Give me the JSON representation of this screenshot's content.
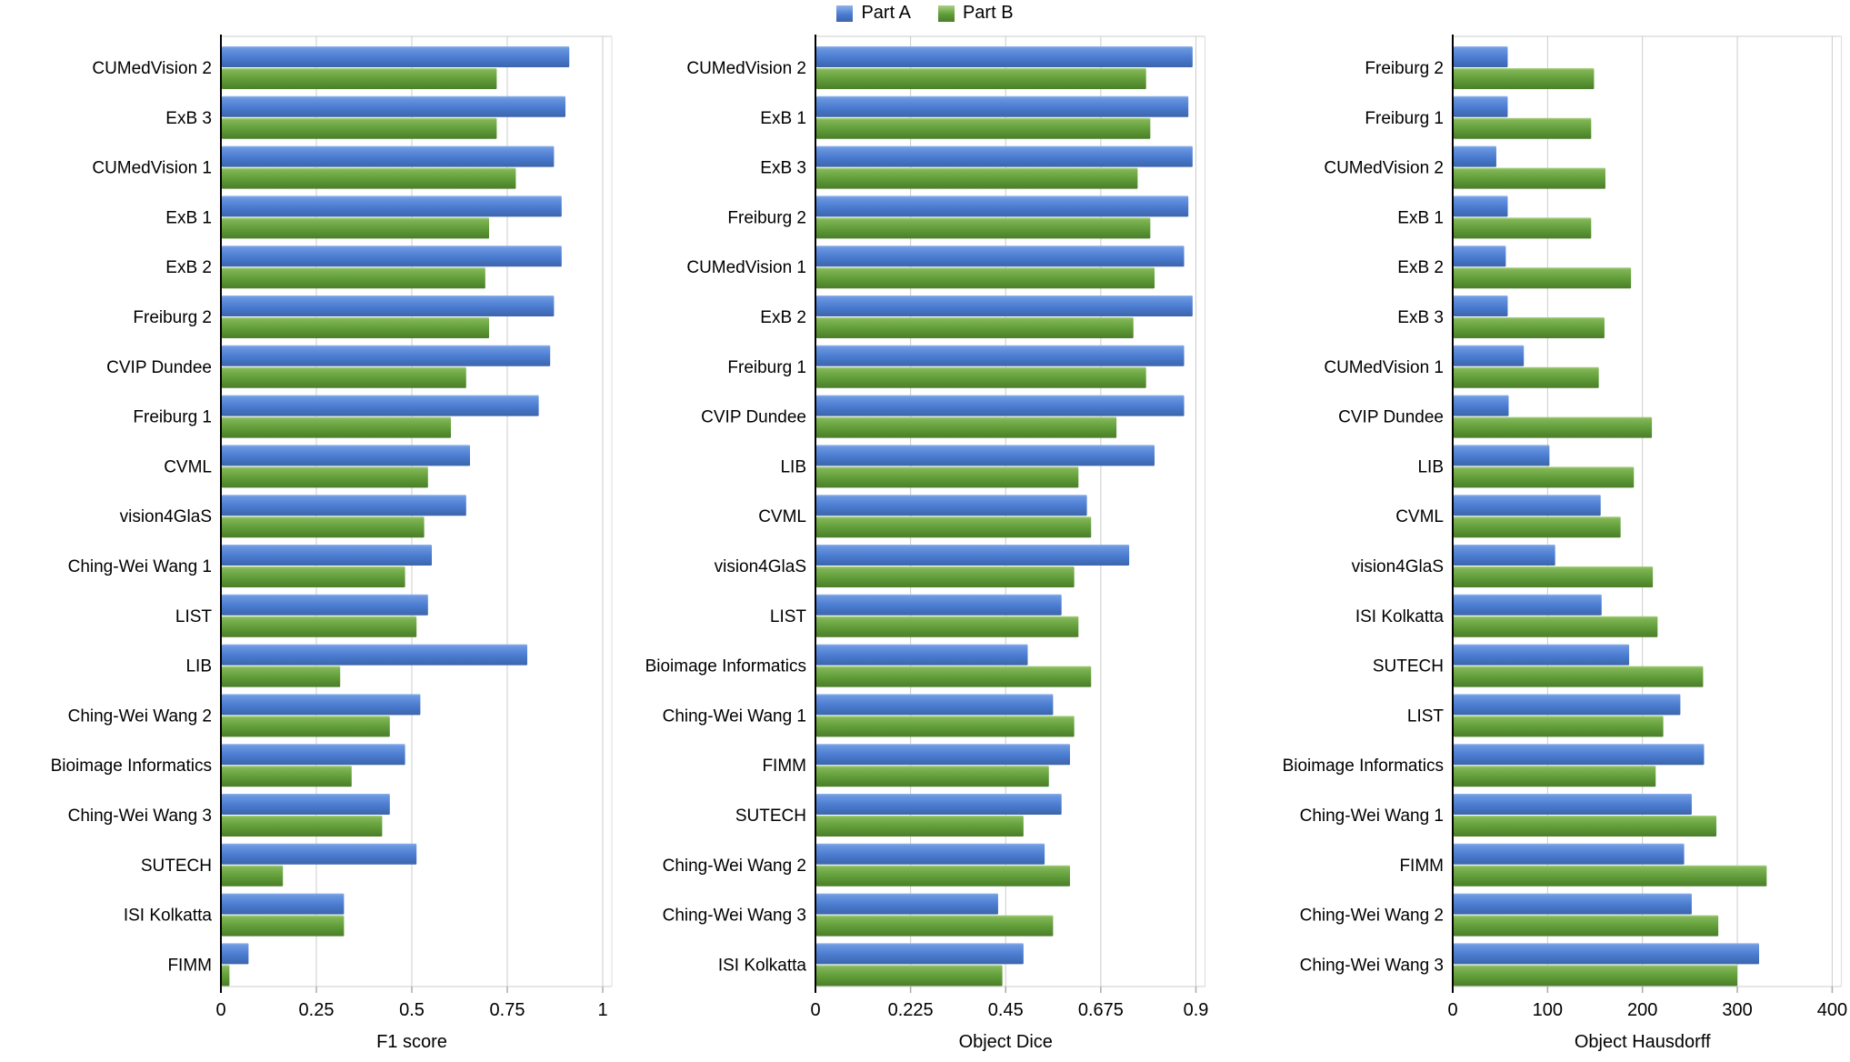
{
  "legend": {
    "items": [
      {
        "label": "Part A",
        "color": "#4a7bd0"
      },
      {
        "label": "Part B",
        "color": "#5f9c38"
      }
    ]
  },
  "colors": {
    "part_a": "#4a7bd0",
    "part_b": "#5f9c38",
    "grid": "#cccccc",
    "axis": "#000000",
    "tick": "#aaaaaa"
  },
  "chart_data": [
    {
      "type": "bar",
      "orientation": "horizontal",
      "xlabel": "F1 score",
      "xlim": [
        0,
        1
      ],
      "xticks": [
        "0",
        "0.25",
        "0.5",
        "0.75",
        "1"
      ],
      "xtick_values": [
        0,
        0.25,
        0.5,
        0.75,
        1
      ],
      "grid": true,
      "legend_position": "top",
      "categories": [
        "CUMedVision 2",
        "ExB 3",
        "CUMedVision 1",
        "ExB 1",
        "ExB 2",
        "Freiburg 2",
        "CVIP Dundee",
        "Freiburg 1",
        "CVML",
        "vision4GlaS",
        "Ching-Wei Wang 1",
        "LIST",
        "LIB",
        "Ching-Wei Wang 2",
        "Bioimage Informatics",
        "Ching-Wei Wang 3",
        "SUTECH",
        "ISI Kolkatta",
        "FIMM"
      ],
      "series": [
        {
          "name": "Part A",
          "values": [
            0.91,
            0.9,
            0.87,
            0.89,
            0.89,
            0.87,
            0.86,
            0.83,
            0.65,
            0.64,
            0.55,
            0.54,
            0.8,
            0.52,
            0.48,
            0.44,
            0.51,
            0.32,
            0.07
          ]
        },
        {
          "name": "Part B",
          "values": [
            0.72,
            0.72,
            0.77,
            0.7,
            0.69,
            0.7,
            0.64,
            0.6,
            0.54,
            0.53,
            0.48,
            0.51,
            0.31,
            0.44,
            0.34,
            0.42,
            0.16,
            0.32,
            0.02
          ]
        }
      ]
    },
    {
      "type": "bar",
      "orientation": "horizontal",
      "xlabel": "Object Dice",
      "xlim": [
        0,
        0.9
      ],
      "xticks": [
        "0",
        "0.225",
        "0.45",
        "0.675",
        "0.9"
      ],
      "xtick_values": [
        0,
        0.225,
        0.45,
        0.675,
        0.9
      ],
      "grid": true,
      "legend_position": "top",
      "categories": [
        "CUMedVision 2",
        "ExB 1",
        "ExB 3",
        "Freiburg 2",
        "CUMedVision 1",
        "ExB 2",
        "Freiburg 1",
        "CVIP Dundee",
        "LIB",
        "CVML",
        "vision4GlaS",
        "LIST",
        "Bioimage Informatics",
        "Ching-Wei Wang 1",
        "FIMM",
        "SUTECH",
        "Ching-Wei Wang 2",
        "Ching-Wei Wang 3",
        "ISI Kolkatta"
      ],
      "series": [
        {
          "name": "Part A",
          "values": [
            0.89,
            0.88,
            0.89,
            0.88,
            0.87,
            0.89,
            0.87,
            0.87,
            0.8,
            0.64,
            0.74,
            0.58,
            0.5,
            0.56,
            0.6,
            0.58,
            0.54,
            0.43,
            0.49
          ]
        },
        {
          "name": "Part B",
          "values": [
            0.78,
            0.79,
            0.76,
            0.79,
            0.8,
            0.75,
            0.78,
            0.71,
            0.62,
            0.65,
            0.61,
            0.62,
            0.65,
            0.61,
            0.55,
            0.49,
            0.6,
            0.56,
            0.44
          ]
        }
      ]
    },
    {
      "type": "bar",
      "orientation": "horizontal",
      "xlabel": "Object Hausdorff",
      "xlim": [
        0,
        400
      ],
      "xticks": [
        "0",
        "100",
        "200",
        "300",
        "400"
      ],
      "xtick_values": [
        0,
        100,
        200,
        300,
        400
      ],
      "grid": true,
      "legend_position": "top",
      "categories": [
        "Freiburg 2",
        "Freiburg 1",
        "CUMedVision 2",
        "ExB 1",
        "ExB 2",
        "ExB 3",
        "CUMedVision 1",
        "CVIP Dundee",
        "LIB",
        "CVML",
        "vision4GlaS",
        "ISI Kolkatta",
        "SUTECH",
        "LIST",
        "Bioimage Informatics",
        "Ching-Wei Wang 1",
        "FIMM",
        "Ching-Wei Wang 2",
        "Ching-Wei Wang 3"
      ],
      "series": [
        {
          "name": "Part A",
          "values": [
            57,
            57,
            45,
            57,
            55,
            57,
            74,
            58,
            101,
            155,
            107,
            156,
            185,
            239,
            264,
            251,
            243,
            251,
            322
          ]
        },
        {
          "name": "Part B",
          "values": [
            148,
            145,
            160,
            145,
            187,
            159,
            153,
            209,
            190,
            176,
            210,
            215,
            263,
            221,
            213,
            277,
            330,
            279,
            299
          ]
        }
      ]
    }
  ]
}
